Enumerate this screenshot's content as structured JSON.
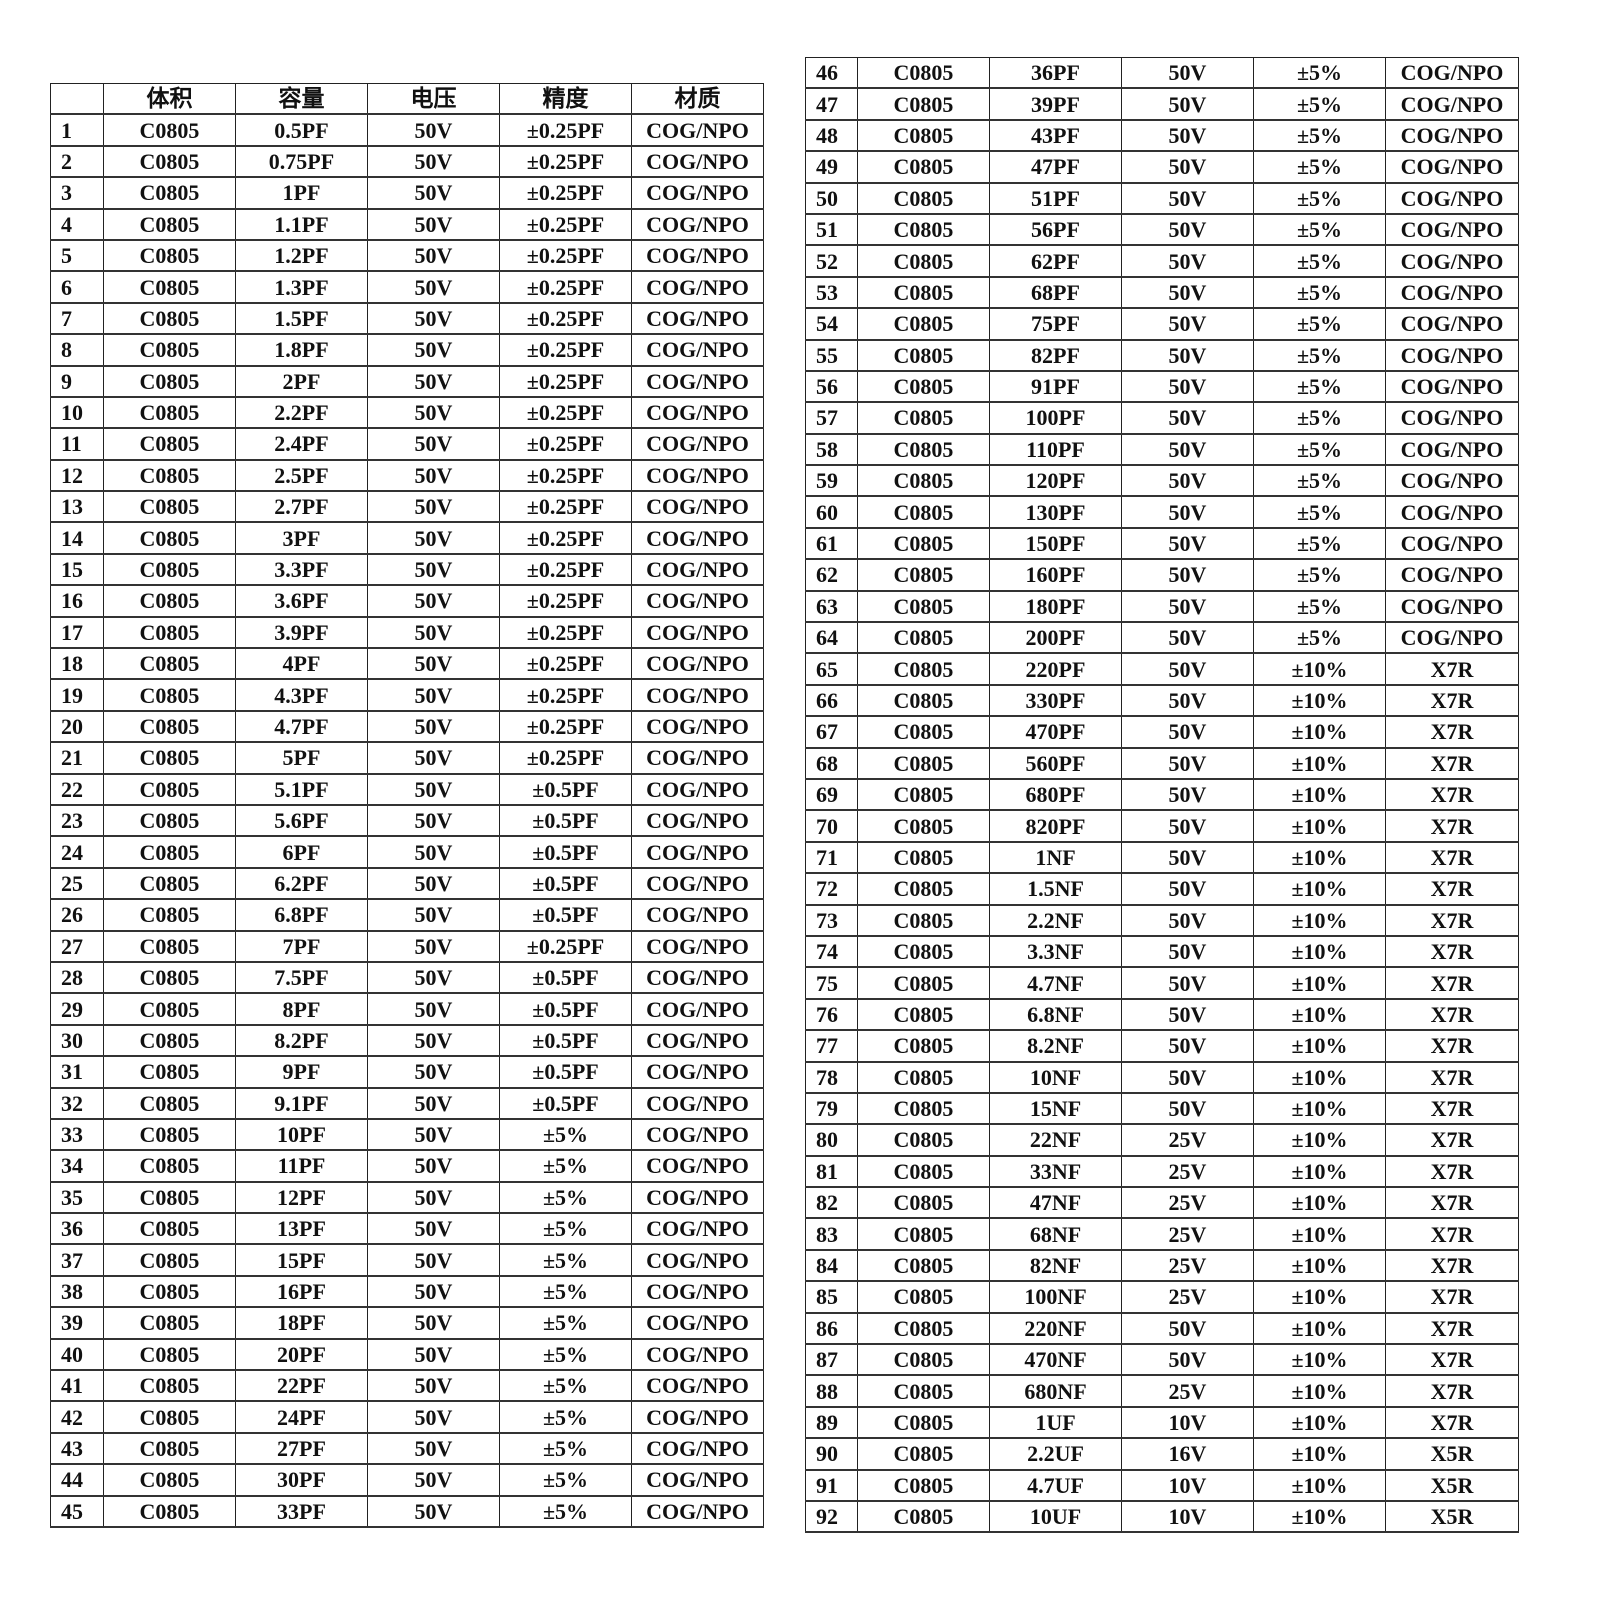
{
  "headers": [
    "",
    "体积",
    "容量",
    "电压",
    "精度",
    "材质"
  ],
  "rows": [
    [
      "1",
      "C0805",
      "0.5PF",
      "50V",
      "±0.25PF",
      "COG/NPO"
    ],
    [
      "2",
      "C0805",
      "0.75PF",
      "50V",
      "±0.25PF",
      "COG/NPO"
    ],
    [
      "3",
      "C0805",
      "1PF",
      "50V",
      "±0.25PF",
      "COG/NPO"
    ],
    [
      "4",
      "C0805",
      "1.1PF",
      "50V",
      "±0.25PF",
      "COG/NPO"
    ],
    [
      "5",
      "C0805",
      "1.2PF",
      "50V",
      "±0.25PF",
      "COG/NPO"
    ],
    [
      "6",
      "C0805",
      "1.3PF",
      "50V",
      "±0.25PF",
      "COG/NPO"
    ],
    [
      "7",
      "C0805",
      "1.5PF",
      "50V",
      "±0.25PF",
      "COG/NPO"
    ],
    [
      "8",
      "C0805",
      "1.8PF",
      "50V",
      "±0.25PF",
      "COG/NPO"
    ],
    [
      "9",
      "C0805",
      "2PF",
      "50V",
      "±0.25PF",
      "COG/NPO"
    ],
    [
      "10",
      "C0805",
      "2.2PF",
      "50V",
      "±0.25PF",
      "COG/NPO"
    ],
    [
      "11",
      "C0805",
      "2.4PF",
      "50V",
      "±0.25PF",
      "COG/NPO"
    ],
    [
      "12",
      "C0805",
      "2.5PF",
      "50V",
      "±0.25PF",
      "COG/NPO"
    ],
    [
      "13",
      "C0805",
      "2.7PF",
      "50V",
      "±0.25PF",
      "COG/NPO"
    ],
    [
      "14",
      "C0805",
      "3PF",
      "50V",
      "±0.25PF",
      "COG/NPO"
    ],
    [
      "15",
      "C0805",
      "3.3PF",
      "50V",
      "±0.25PF",
      "COG/NPO"
    ],
    [
      "16",
      "C0805",
      "3.6PF",
      "50V",
      "±0.25PF",
      "COG/NPO"
    ],
    [
      "17",
      "C0805",
      "3.9PF",
      "50V",
      "±0.25PF",
      "COG/NPO"
    ],
    [
      "18",
      "C0805",
      "4PF",
      "50V",
      "±0.25PF",
      "COG/NPO"
    ],
    [
      "19",
      "C0805",
      "4.3PF",
      "50V",
      "±0.25PF",
      "COG/NPO"
    ],
    [
      "20",
      "C0805",
      "4.7PF",
      "50V",
      "±0.25PF",
      "COG/NPO"
    ],
    [
      "21",
      "C0805",
      "5PF",
      "50V",
      "±0.25PF",
      "COG/NPO"
    ],
    [
      "22",
      "C0805",
      "5.1PF",
      "50V",
      "±0.5PF",
      "COG/NPO"
    ],
    [
      "23",
      "C0805",
      "5.6PF",
      "50V",
      "±0.5PF",
      "COG/NPO"
    ],
    [
      "24",
      "C0805",
      "6PF",
      "50V",
      "±0.5PF",
      "COG/NPO"
    ],
    [
      "25",
      "C0805",
      "6.2PF",
      "50V",
      "±0.5PF",
      "COG/NPO"
    ],
    [
      "26",
      "C0805",
      "6.8PF",
      "50V",
      "±0.5PF",
      "COG/NPO"
    ],
    [
      "27",
      "C0805",
      "7PF",
      "50V",
      "±0.25PF",
      "COG/NPO"
    ],
    [
      "28",
      "C0805",
      "7.5PF",
      "50V",
      "±0.5PF",
      "COG/NPO"
    ],
    [
      "29",
      "C0805",
      "8PF",
      "50V",
      "±0.5PF",
      "COG/NPO"
    ],
    [
      "30",
      "C0805",
      "8.2PF",
      "50V",
      "±0.5PF",
      "COG/NPO"
    ],
    [
      "31",
      "C0805",
      "9PF",
      "50V",
      "±0.5PF",
      "COG/NPO"
    ],
    [
      "32",
      "C0805",
      "9.1PF",
      "50V",
      "±0.5PF",
      "COG/NPO"
    ],
    [
      "33",
      "C0805",
      "10PF",
      "50V",
      "±5%",
      "COG/NPO"
    ],
    [
      "34",
      "C0805",
      "11PF",
      "50V",
      "±5%",
      "COG/NPO"
    ],
    [
      "35",
      "C0805",
      "12PF",
      "50V",
      "±5%",
      "COG/NPO"
    ],
    [
      "36",
      "C0805",
      "13PF",
      "50V",
      "±5%",
      "COG/NPO"
    ],
    [
      "37",
      "C0805",
      "15PF",
      "50V",
      "±5%",
      "COG/NPO"
    ],
    [
      "38",
      "C0805",
      "16PF",
      "50V",
      "±5%",
      "COG/NPO"
    ],
    [
      "39",
      "C0805",
      "18PF",
      "50V",
      "±5%",
      "COG/NPO"
    ],
    [
      "40",
      "C0805",
      "20PF",
      "50V",
      "±5%",
      "COG/NPO"
    ],
    [
      "41",
      "C0805",
      "22PF",
      "50V",
      "±5%",
      "COG/NPO"
    ],
    [
      "42",
      "C0805",
      "24PF",
      "50V",
      "±5%",
      "COG/NPO"
    ],
    [
      "43",
      "C0805",
      "27PF",
      "50V",
      "±5%",
      "COG/NPO"
    ],
    [
      "44",
      "C0805",
      "30PF",
      "50V",
      "±5%",
      "COG/NPO"
    ],
    [
      "45",
      "C0805",
      "33PF",
      "50V",
      "±5%",
      "COG/NPO"
    ],
    [
      "46",
      "C0805",
      "36PF",
      "50V",
      "±5%",
      "COG/NPO"
    ],
    [
      "47",
      "C0805",
      "39PF",
      "50V",
      "±5%",
      "COG/NPO"
    ],
    [
      "48",
      "C0805",
      "43PF",
      "50V",
      "±5%",
      "COG/NPO"
    ],
    [
      "49",
      "C0805",
      "47PF",
      "50V",
      "±5%",
      "COG/NPO"
    ],
    [
      "50",
      "C0805",
      "51PF",
      "50V",
      "±5%",
      "COG/NPO"
    ],
    [
      "51",
      "C0805",
      "56PF",
      "50V",
      "±5%",
      "COG/NPO"
    ],
    [
      "52",
      "C0805",
      "62PF",
      "50V",
      "±5%",
      "COG/NPO"
    ],
    [
      "53",
      "C0805",
      "68PF",
      "50V",
      "±5%",
      "COG/NPO"
    ],
    [
      "54",
      "C0805",
      "75PF",
      "50V",
      "±5%",
      "COG/NPO"
    ],
    [
      "55",
      "C0805",
      "82PF",
      "50V",
      "±5%",
      "COG/NPO"
    ],
    [
      "56",
      "C0805",
      "91PF",
      "50V",
      "±5%",
      "COG/NPO"
    ],
    [
      "57",
      "C0805",
      "100PF",
      "50V",
      "±5%",
      "COG/NPO"
    ],
    [
      "58",
      "C0805",
      "110PF",
      "50V",
      "±5%",
      "COG/NPO"
    ],
    [
      "59",
      "C0805",
      "120PF",
      "50V",
      "±5%",
      "COG/NPO"
    ],
    [
      "60",
      "C0805",
      "130PF",
      "50V",
      "±5%",
      "COG/NPO"
    ],
    [
      "61",
      "C0805",
      "150PF",
      "50V",
      "±5%",
      "COG/NPO"
    ],
    [
      "62",
      "C0805",
      "160PF",
      "50V",
      "±5%",
      "COG/NPO"
    ],
    [
      "63",
      "C0805",
      "180PF",
      "50V",
      "±5%",
      "COG/NPO"
    ],
    [
      "64",
      "C0805",
      "200PF",
      "50V",
      "±5%",
      "COG/NPO"
    ],
    [
      "65",
      "C0805",
      "220PF",
      "50V",
      "±10%",
      "X7R"
    ],
    [
      "66",
      "C0805",
      "330PF",
      "50V",
      "±10%",
      "X7R"
    ],
    [
      "67",
      "C0805",
      "470PF",
      "50V",
      "±10%",
      "X7R"
    ],
    [
      "68",
      "C0805",
      "560PF",
      "50V",
      "±10%",
      "X7R"
    ],
    [
      "69",
      "C0805",
      "680PF",
      "50V",
      "±10%",
      "X7R"
    ],
    [
      "70",
      "C0805",
      "820PF",
      "50V",
      "±10%",
      "X7R"
    ],
    [
      "71",
      "C0805",
      "1NF",
      "50V",
      "±10%",
      "X7R"
    ],
    [
      "72",
      "C0805",
      "1.5NF",
      "50V",
      "±10%",
      "X7R"
    ],
    [
      "73",
      "C0805",
      "2.2NF",
      "50V",
      "±10%",
      "X7R"
    ],
    [
      "74",
      "C0805",
      "3.3NF",
      "50V",
      "±10%",
      "X7R"
    ],
    [
      "75",
      "C0805",
      "4.7NF",
      "50V",
      "±10%",
      "X7R"
    ],
    [
      "76",
      "C0805",
      "6.8NF",
      "50V",
      "±10%",
      "X7R"
    ],
    [
      "77",
      "C0805",
      "8.2NF",
      "50V",
      "±10%",
      "X7R"
    ],
    [
      "78",
      "C0805",
      "10NF",
      "50V",
      "±10%",
      "X7R"
    ],
    [
      "79",
      "C0805",
      "15NF",
      "50V",
      "±10%",
      "X7R"
    ],
    [
      "80",
      "C0805",
      "22NF",
      "25V",
      "±10%",
      "X7R"
    ],
    [
      "81",
      "C0805",
      "33NF",
      "25V",
      "±10%",
      "X7R"
    ],
    [
      "82",
      "C0805",
      "47NF",
      "25V",
      "±10%",
      "X7R"
    ],
    [
      "83",
      "C0805",
      "68NF",
      "25V",
      "±10%",
      "X7R"
    ],
    [
      "84",
      "C0805",
      "82NF",
      "25V",
      "±10%",
      "X7R"
    ],
    [
      "85",
      "C0805",
      "100NF",
      "25V",
      "±10%",
      "X7R"
    ],
    [
      "86",
      "C0805",
      "220NF",
      "50V",
      "±10%",
      "X7R"
    ],
    [
      "87",
      "C0805",
      "470NF",
      "50V",
      "±10%",
      "X7R"
    ],
    [
      "88",
      "C0805",
      "680NF",
      "25V",
      "±10%",
      "X7R"
    ],
    [
      "89",
      "C0805",
      "1UF",
      "10V",
      "±10%",
      "X7R"
    ],
    [
      "90",
      "C0805",
      "2.2UF",
      "16V",
      "±10%",
      "X5R"
    ],
    [
      "91",
      "C0805",
      "4.7UF",
      "10V",
      "±10%",
      "X5R"
    ],
    [
      "92",
      "C0805",
      "10UF",
      "10V",
      "±10%",
      "X5R"
    ]
  ]
}
